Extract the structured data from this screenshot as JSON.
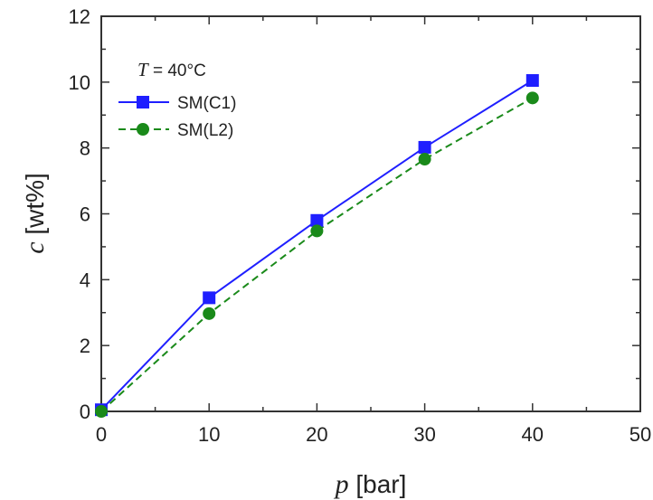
{
  "chart_data": {
    "type": "line",
    "annotation": {
      "var": "T",
      "text": " = 40°C"
    },
    "xlabel": {
      "var": "p",
      "unit": " [bar]"
    },
    "ylabel": {
      "var": "c",
      "unit": " [wt%]"
    },
    "xlim": [
      0,
      50
    ],
    "ylim": [
      0,
      12
    ],
    "xticks": [
      "0",
      "10",
      "20",
      "30",
      "40",
      "50"
    ],
    "yticks": [
      "0",
      "2",
      "4",
      "6",
      "8",
      "10",
      "12"
    ],
    "grid": false,
    "legend_position": "top-left",
    "series": [
      {
        "name": "SM(C1)",
        "color": "#1f1fff",
        "line_style": "solid",
        "marker": "square",
        "x": [
          0,
          10,
          20,
          30,
          40
        ],
        "y": [
          0.05,
          3.45,
          5.8,
          8.02,
          10.05
        ]
      },
      {
        "name": "SM(L2)",
        "color": "#1a8a1a",
        "line_style": "dashed",
        "marker": "circle",
        "x": [
          0,
          10,
          20,
          30,
          40
        ],
        "y": [
          0.0,
          2.97,
          5.48,
          7.66,
          9.52
        ]
      }
    ]
  }
}
